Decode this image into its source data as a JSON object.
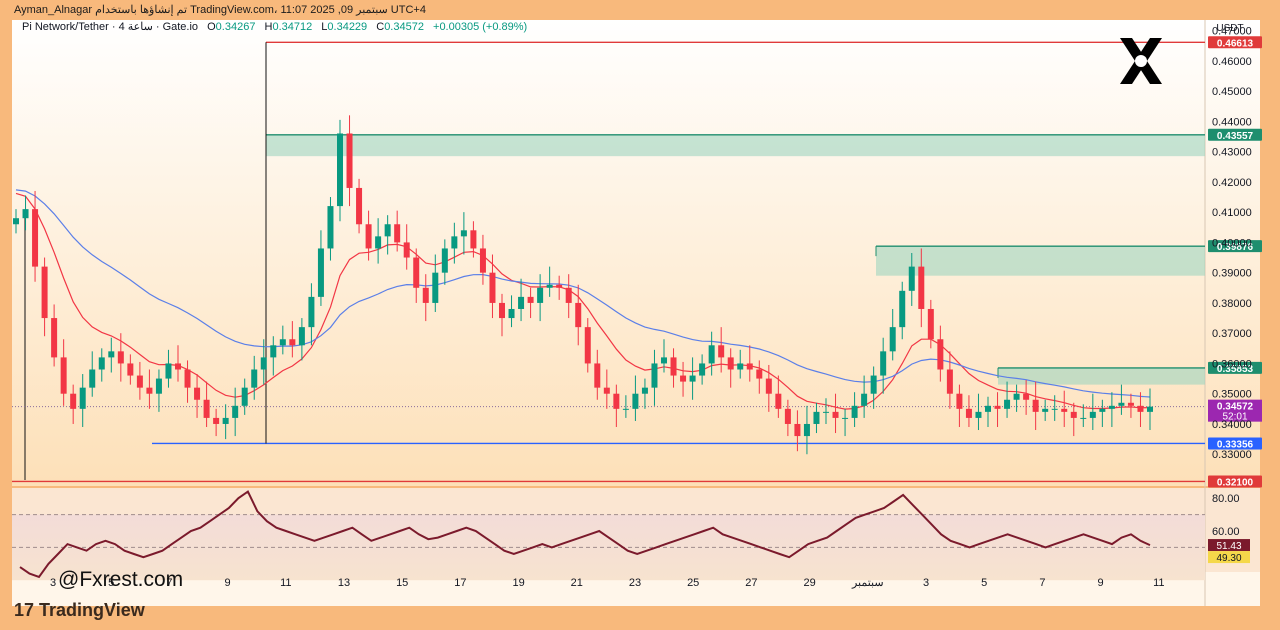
{
  "header": {
    "text": "Ayman_Alnagar تم إنشاؤها باستخدام TradingView.com، 11:07 2025 ,09 سبتمبر UTC+4"
  },
  "symbol_info": {
    "title": "Pi Network/Tether · 4 ساعة · Gate.io",
    "open_label": "O",
    "open": "0.34267",
    "high_label": "H",
    "high": "0.34712",
    "low_label": "L",
    "low": "0.34229",
    "close_label": "C",
    "close": "0.34572",
    "change": "+0.00305 (+0.89%)"
  },
  "watermark": "@Fxrest.com",
  "footer_logo": "TradingView",
  "brand_icon": "x-logo-icon",
  "currency": "USDT",
  "colors": {
    "up": "#089981",
    "down": "#f23645",
    "ema_fast": "#f23645",
    "ema_slow": "#5b7fe8",
    "resistance": "#e03a3a",
    "support": "#2962ff",
    "zone": "#9ed6c0",
    "rsi": "#7b1a2c"
  },
  "chart_data": [
    {
      "type": "candlestick",
      "title": "Pi Network/Tether",
      "timeframe": "4h",
      "y_range": [
        0.3195,
        0.4735
      ],
      "y_ticks": [
        "0.47000",
        "0.46000",
        "0.45000",
        "0.44000",
        "0.43000",
        "0.42000",
        "0.41000",
        "0.40000",
        "0.39000",
        "0.38000",
        "0.37000",
        "0.36000",
        "0.35000",
        "0.34000",
        "0.33000"
      ],
      "x_ticks": [
        "3",
        "5",
        "7",
        "9",
        "11",
        "13",
        "15",
        "17",
        "19",
        "21",
        "23",
        "25",
        "27",
        "29",
        "سبتمبر",
        "3",
        "5",
        "7",
        "9",
        "11"
      ],
      "price_levels": [
        {
          "value": 0.46613,
          "label": "0.46613",
          "kind": "resistance",
          "color": "#e03a3a"
        },
        {
          "value": 0.43557,
          "label": "0.43557",
          "kind": "zone",
          "color": "#1e8e6e"
        },
        {
          "value": 0.39876,
          "label": "0.39876",
          "kind": "zone",
          "color": "#1e8e6e"
        },
        {
          "value": 0.35853,
          "label": "0.35853",
          "kind": "zone",
          "color": "#1e8e6e"
        },
        {
          "value": 0.33356,
          "label": "0.33356",
          "kind": "support",
          "color": "#2962ff"
        },
        {
          "value": 0.321,
          "label": "0.32100",
          "kind": "resistance",
          "color": "#e03a3a"
        }
      ],
      "zones": [
        {
          "from": 0.4285,
          "to": 0.43557
        },
        {
          "from": 0.389,
          "to": 0.39876
        },
        {
          "from": 0.353,
          "to": 0.35853
        }
      ],
      "last_price": {
        "value": 0.34572,
        "label": "0.34572",
        "countdown": "52:01"
      },
      "closes": [
        0.408,
        0.411,
        0.392,
        0.375,
        0.362,
        0.35,
        0.345,
        0.352,
        0.358,
        0.362,
        0.364,
        0.36,
        0.356,
        0.352,
        0.35,
        0.355,
        0.36,
        0.358,
        0.352,
        0.348,
        0.342,
        0.34,
        0.342,
        0.346,
        0.352,
        0.358,
        0.362,
        0.366,
        0.368,
        0.366,
        0.372,
        0.382,
        0.398,
        0.412,
        0.436,
        0.418,
        0.406,
        0.398,
        0.402,
        0.406,
        0.4,
        0.395,
        0.385,
        0.38,
        0.39,
        0.398,
        0.402,
        0.404,
        0.398,
        0.39,
        0.38,
        0.375,
        0.378,
        0.382,
        0.38,
        0.385,
        0.386,
        0.385,
        0.38,
        0.372,
        0.36,
        0.352,
        0.35,
        0.345,
        0.345,
        0.35,
        0.352,
        0.36,
        0.362,
        0.356,
        0.354,
        0.356,
        0.36,
        0.366,
        0.362,
        0.358,
        0.36,
        0.358,
        0.355,
        0.35,
        0.345,
        0.34,
        0.336,
        0.34,
        0.344,
        0.344,
        0.342,
        0.342,
        0.346,
        0.35,
        0.356,
        0.364,
        0.372,
        0.384,
        0.392,
        0.378,
        0.368,
        0.358,
        0.35,
        0.345,
        0.342,
        0.344,
        0.346,
        0.345,
        0.348,
        0.35,
        0.348,
        0.344,
        0.345,
        0.345,
        0.344,
        0.342,
        0.342,
        0.344,
        0.345,
        0.346,
        0.347,
        0.346,
        0.344,
        0.34572
      ]
    },
    {
      "type": "line",
      "title": "RSI",
      "y_range": [
        35,
        85
      ],
      "y_ticks": [
        "80.00",
        "60.00"
      ],
      "bands": {
        "upper": 70,
        "middle": 50,
        "lower": 30
      },
      "value": 51.43,
      "value_label": "51.43",
      "signal": 49.3,
      "signal_label": "49.30",
      "values": [
        38,
        34,
        32,
        40,
        46,
        52,
        50,
        48,
        52,
        54,
        52,
        48,
        46,
        44,
        46,
        48,
        52,
        56,
        60,
        62,
        66,
        70,
        74,
        80,
        84,
        72,
        66,
        62,
        60,
        58,
        56,
        54,
        56,
        58,
        60,
        62,
        58,
        54,
        56,
        58,
        60,
        62,
        58,
        55,
        56,
        58,
        60,
        62,
        60,
        56,
        52,
        48,
        46,
        48,
        50,
        52,
        50,
        52,
        54,
        56,
        58,
        60,
        56,
        52,
        48,
        46,
        48,
        50,
        52,
        54,
        56,
        58,
        60,
        62,
        58,
        56,
        54,
        52,
        50,
        48,
        46,
        44,
        48,
        52,
        54,
        56,
        60,
        64,
        68,
        70,
        72,
        74,
        78,
        82,
        76,
        70,
        64,
        58,
        54,
        52,
        50,
        52,
        54,
        56,
        58,
        56,
        54,
        52,
        50,
        52,
        54,
        56,
        58,
        56,
        54,
        52,
        56,
        58,
        54,
        51.43
      ]
    }
  ]
}
